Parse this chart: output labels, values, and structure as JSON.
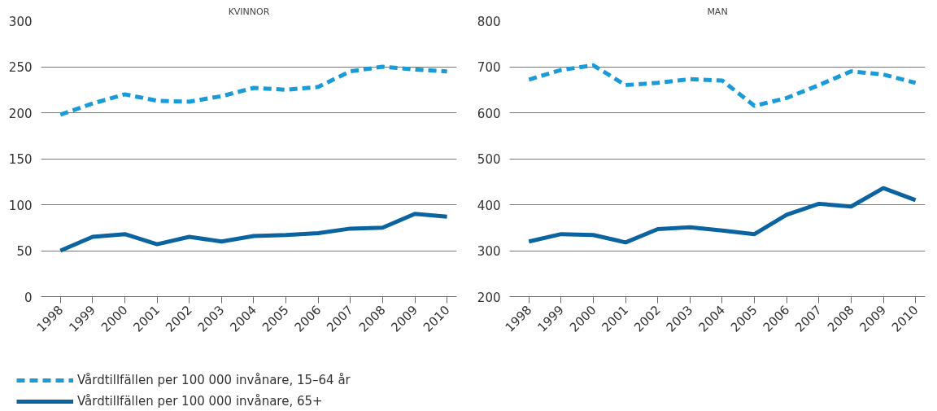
{
  "chart_data": [
    {
      "type": "line",
      "title": "KVINNOR",
      "categories": [
        "1998",
        "1999",
        "2000",
        "2001",
        "2002",
        "2003",
        "2004",
        "2005",
        "2006",
        "2007",
        "2008",
        "2009",
        "2010"
      ],
      "ylim": [
        0,
        300
      ],
      "yticks": [
        0,
        50,
        100,
        150,
        200,
        250,
        300
      ],
      "grid": "y",
      "legend": "bottom",
      "series": [
        {
          "name": "Vårdtillfällen per 100 000 invånare, 15–64 år",
          "color": "#1a9ad6",
          "line_style": "dashed",
          "values": [
            198,
            210,
            220,
            213,
            212,
            218,
            227,
            225,
            228,
            245,
            250,
            247,
            245
          ]
        },
        {
          "name": "Vårdtillfällen per 100 000 invånare, 65+",
          "color": "#0b64a0",
          "line_style": "solid",
          "values": [
            50,
            65,
            68,
            57,
            65,
            60,
            66,
            67,
            69,
            74,
            75,
            90,
            87
          ]
        }
      ]
    },
    {
      "type": "line",
      "title": "MAN",
      "categories": [
        "1998",
        "1999",
        "2000",
        "2001",
        "2002",
        "2003",
        "2004",
        "2005",
        "2006",
        "2007",
        "2008",
        "2009",
        "2010"
      ],
      "ylim": [
        200,
        800
      ],
      "yticks": [
        200,
        300,
        400,
        500,
        600,
        700,
        800
      ],
      "grid": "y",
      "series": [
        {
          "color": "#1a9ad6",
          "line_style": "dashed",
          "values": [
            672,
            693,
            703,
            660,
            665,
            673,
            670,
            615,
            632,
            660,
            690,
            683,
            665
          ]
        },
        {
          "color": "#0b64a0",
          "line_style": "solid",
          "values": [
            320,
            336,
            334,
            318,
            347,
            351,
            344,
            336,
            378,
            402,
            396,
            436,
            410
          ]
        }
      ]
    }
  ]
}
